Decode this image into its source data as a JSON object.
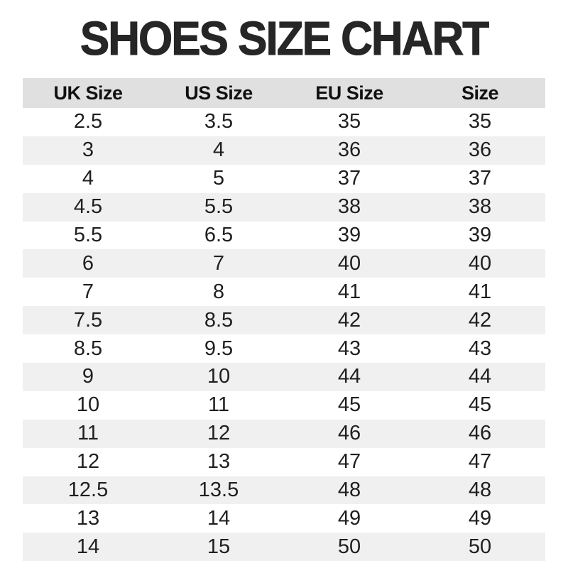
{
  "title": "SHOES SIZE CHART",
  "table": {
    "headers": [
      "UK Size",
      "US Size",
      "EU Size",
      "Size"
    ],
    "rows": [
      [
        "2.5",
        "3.5",
        "35",
        "35"
      ],
      [
        "3",
        "4",
        "36",
        "36"
      ],
      [
        "4",
        "5",
        "37",
        "37"
      ],
      [
        "4.5",
        "5.5",
        "38",
        "38"
      ],
      [
        "5.5",
        "6.5",
        "39",
        "39"
      ],
      [
        "6",
        "7",
        "40",
        "40"
      ],
      [
        "7",
        "8",
        "41",
        "41"
      ],
      [
        "7.5",
        "8.5",
        "42",
        "42"
      ],
      [
        "8.5",
        "9.5",
        "43",
        "43"
      ],
      [
        "9",
        "10",
        "44",
        "44"
      ],
      [
        "10",
        "11",
        "45",
        "45"
      ],
      [
        "11",
        "12",
        "46",
        "46"
      ],
      [
        "12",
        "13",
        "47",
        "47"
      ],
      [
        "12.5",
        "13.5",
        "48",
        "48"
      ],
      [
        "13",
        "14",
        "49",
        "49"
      ],
      [
        "14",
        "15",
        "50",
        "50"
      ]
    ]
  },
  "colors": {
    "title": "#262626",
    "text": "#1f1f1f",
    "header_bg": "#e0e0e0",
    "stripe_bg": "#f0f0f0",
    "row_bg": "#ffffff"
  },
  "chart_data": {
    "type": "table",
    "title": "SHOES SIZE CHART",
    "columns": [
      "UK Size",
      "US Size",
      "EU Size",
      "Size"
    ],
    "rows": [
      [
        "2.5",
        "3.5",
        "35",
        "35"
      ],
      [
        "3",
        "4",
        "36",
        "36"
      ],
      [
        "4",
        "5",
        "37",
        "37"
      ],
      [
        "4.5",
        "5.5",
        "38",
        "38"
      ],
      [
        "5.5",
        "6.5",
        "39",
        "39"
      ],
      [
        "6",
        "7",
        "40",
        "40"
      ],
      [
        "7",
        "8",
        "41",
        "41"
      ],
      [
        "7.5",
        "8.5",
        "42",
        "42"
      ],
      [
        "8.5",
        "9.5",
        "43",
        "43"
      ],
      [
        "9",
        "10",
        "44",
        "44"
      ],
      [
        "10",
        "11",
        "45",
        "45"
      ],
      [
        "11",
        "12",
        "46",
        "46"
      ],
      [
        "12",
        "13",
        "47",
        "47"
      ],
      [
        "12.5",
        "13.5",
        "48",
        "48"
      ],
      [
        "13",
        "14",
        "49",
        "49"
      ],
      [
        "14",
        "15",
        "50",
        "50"
      ]
    ],
    "layout": {
      "header_background": "#e0e0e0",
      "zebra_striping": true,
      "stripe_background": "#f0f0f0",
      "text_alignment": "center"
    }
  }
}
